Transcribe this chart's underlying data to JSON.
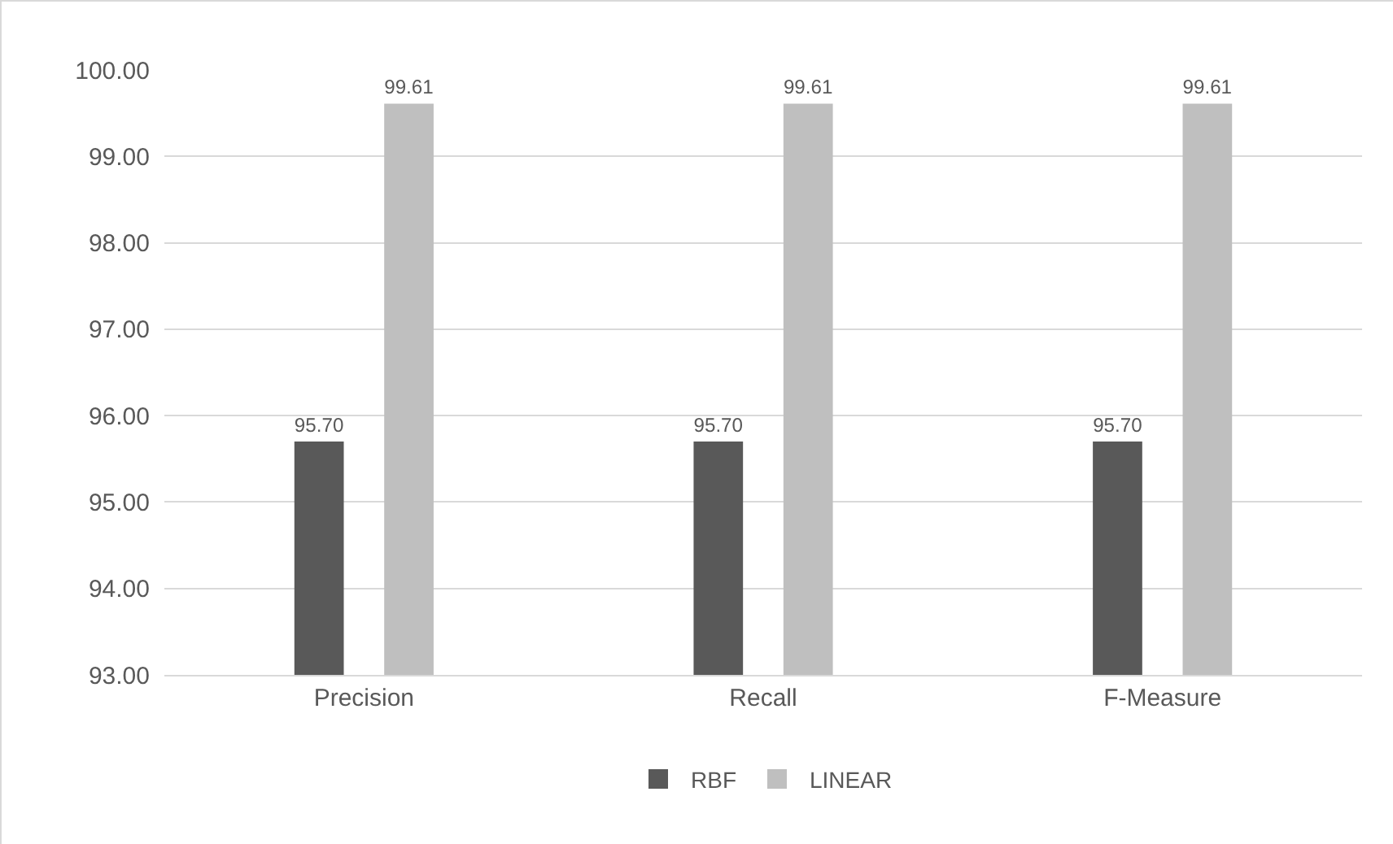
{
  "chart_data": {
    "type": "bar",
    "categories": [
      "Precision",
      "Recall",
      "F-Measure"
    ],
    "series": [
      {
        "name": "RBF",
        "color": "#595959",
        "values": [
          95.7,
          95.7,
          95.7
        ],
        "value_labels": [
          "95.70",
          "95.70",
          "95.70"
        ]
      },
      {
        "name": "LINEAR",
        "color": "#bfbfbf",
        "values": [
          99.61,
          99.61,
          99.61
        ],
        "value_labels": [
          "99.61",
          "99.61",
          "99.61"
        ]
      }
    ],
    "ylim": [
      93,
      100
    ],
    "yticks": [
      {
        "value": 93,
        "label": "93.00"
      },
      {
        "value": 94,
        "label": "94.00"
      },
      {
        "value": 95,
        "label": "95.00"
      },
      {
        "value": 96,
        "label": "96.00"
      },
      {
        "value": 97,
        "label": "97.00"
      },
      {
        "value": 98,
        "label": "98.00"
      },
      {
        "value": 99,
        "label": "99.00"
      },
      {
        "value": 100,
        "label": "100.00"
      }
    ],
    "grid": "y",
    "legend": "bottom"
  }
}
